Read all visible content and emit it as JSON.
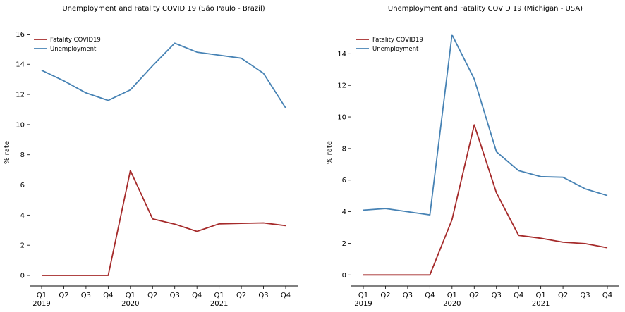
{
  "chart_data": [
    {
      "type": "line",
      "title": "Unemployment and Fatality COVID 19 (São Paulo - Brazil)",
      "ylabel": "% rate",
      "xlabel": "",
      "categories": [
        "Q1",
        "Q2",
        "Q3",
        "Q4",
        "Q1",
        "Q2",
        "Q3",
        "Q4",
        "Q1",
        "Q2",
        "Q3",
        "Q4"
      ],
      "year_labels": [
        "2019",
        "2020",
        "2021"
      ],
      "ylim": [
        -0.7,
        17
      ],
      "yticks": [
        0,
        2,
        4,
        6,
        8,
        10,
        12,
        14,
        16
      ],
      "legend_position": "top-left",
      "series": [
        {
          "name": "Fatality COVID19",
          "color": "#a52a2a",
          "values": [
            0,
            0,
            0,
            0,
            6.95,
            3.75,
            3.4,
            2.92,
            3.42,
            3.45,
            3.48,
            3.3
          ]
        },
        {
          "name": "Unemployment",
          "color": "#4682b4",
          "values": [
            13.6,
            12.9,
            12.1,
            11.6,
            12.3,
            13.9,
            15.4,
            14.8,
            14.6,
            14.4,
            13.4,
            11.1
          ]
        }
      ]
    },
    {
      "type": "line",
      "title": "Unemployment and Fatality COVID 19 (Michigan - USA)",
      "ylabel": "% rate",
      "xlabel": "",
      "categories": [
        "Q1",
        "Q2",
        "Q3",
        "Q4",
        "Q1",
        "Q2",
        "Q3",
        "Q4",
        "Q1",
        "Q2",
        "Q3",
        "Q4"
      ],
      "year_labels": [
        "2019",
        "2020",
        "2021"
      ],
      "ylim": [
        -0.7,
        16.2
      ],
      "yticks": [
        0,
        2,
        4,
        6,
        8,
        10,
        12,
        14
      ],
      "legend_position": "top-left",
      "series": [
        {
          "name": "Fatality COVID19",
          "color": "#a52a2a",
          "values": [
            0,
            0,
            0,
            0,
            3.5,
            9.5,
            5.2,
            2.5,
            2.32,
            2.07,
            1.98,
            1.72
          ]
        },
        {
          "name": "Unemployment",
          "color": "#4682b4",
          "values": [
            4.1,
            4.2,
            4.0,
            3.8,
            15.2,
            12.4,
            7.8,
            6.6,
            6.22,
            6.18,
            5.45,
            5.02
          ]
        }
      ]
    }
  ]
}
